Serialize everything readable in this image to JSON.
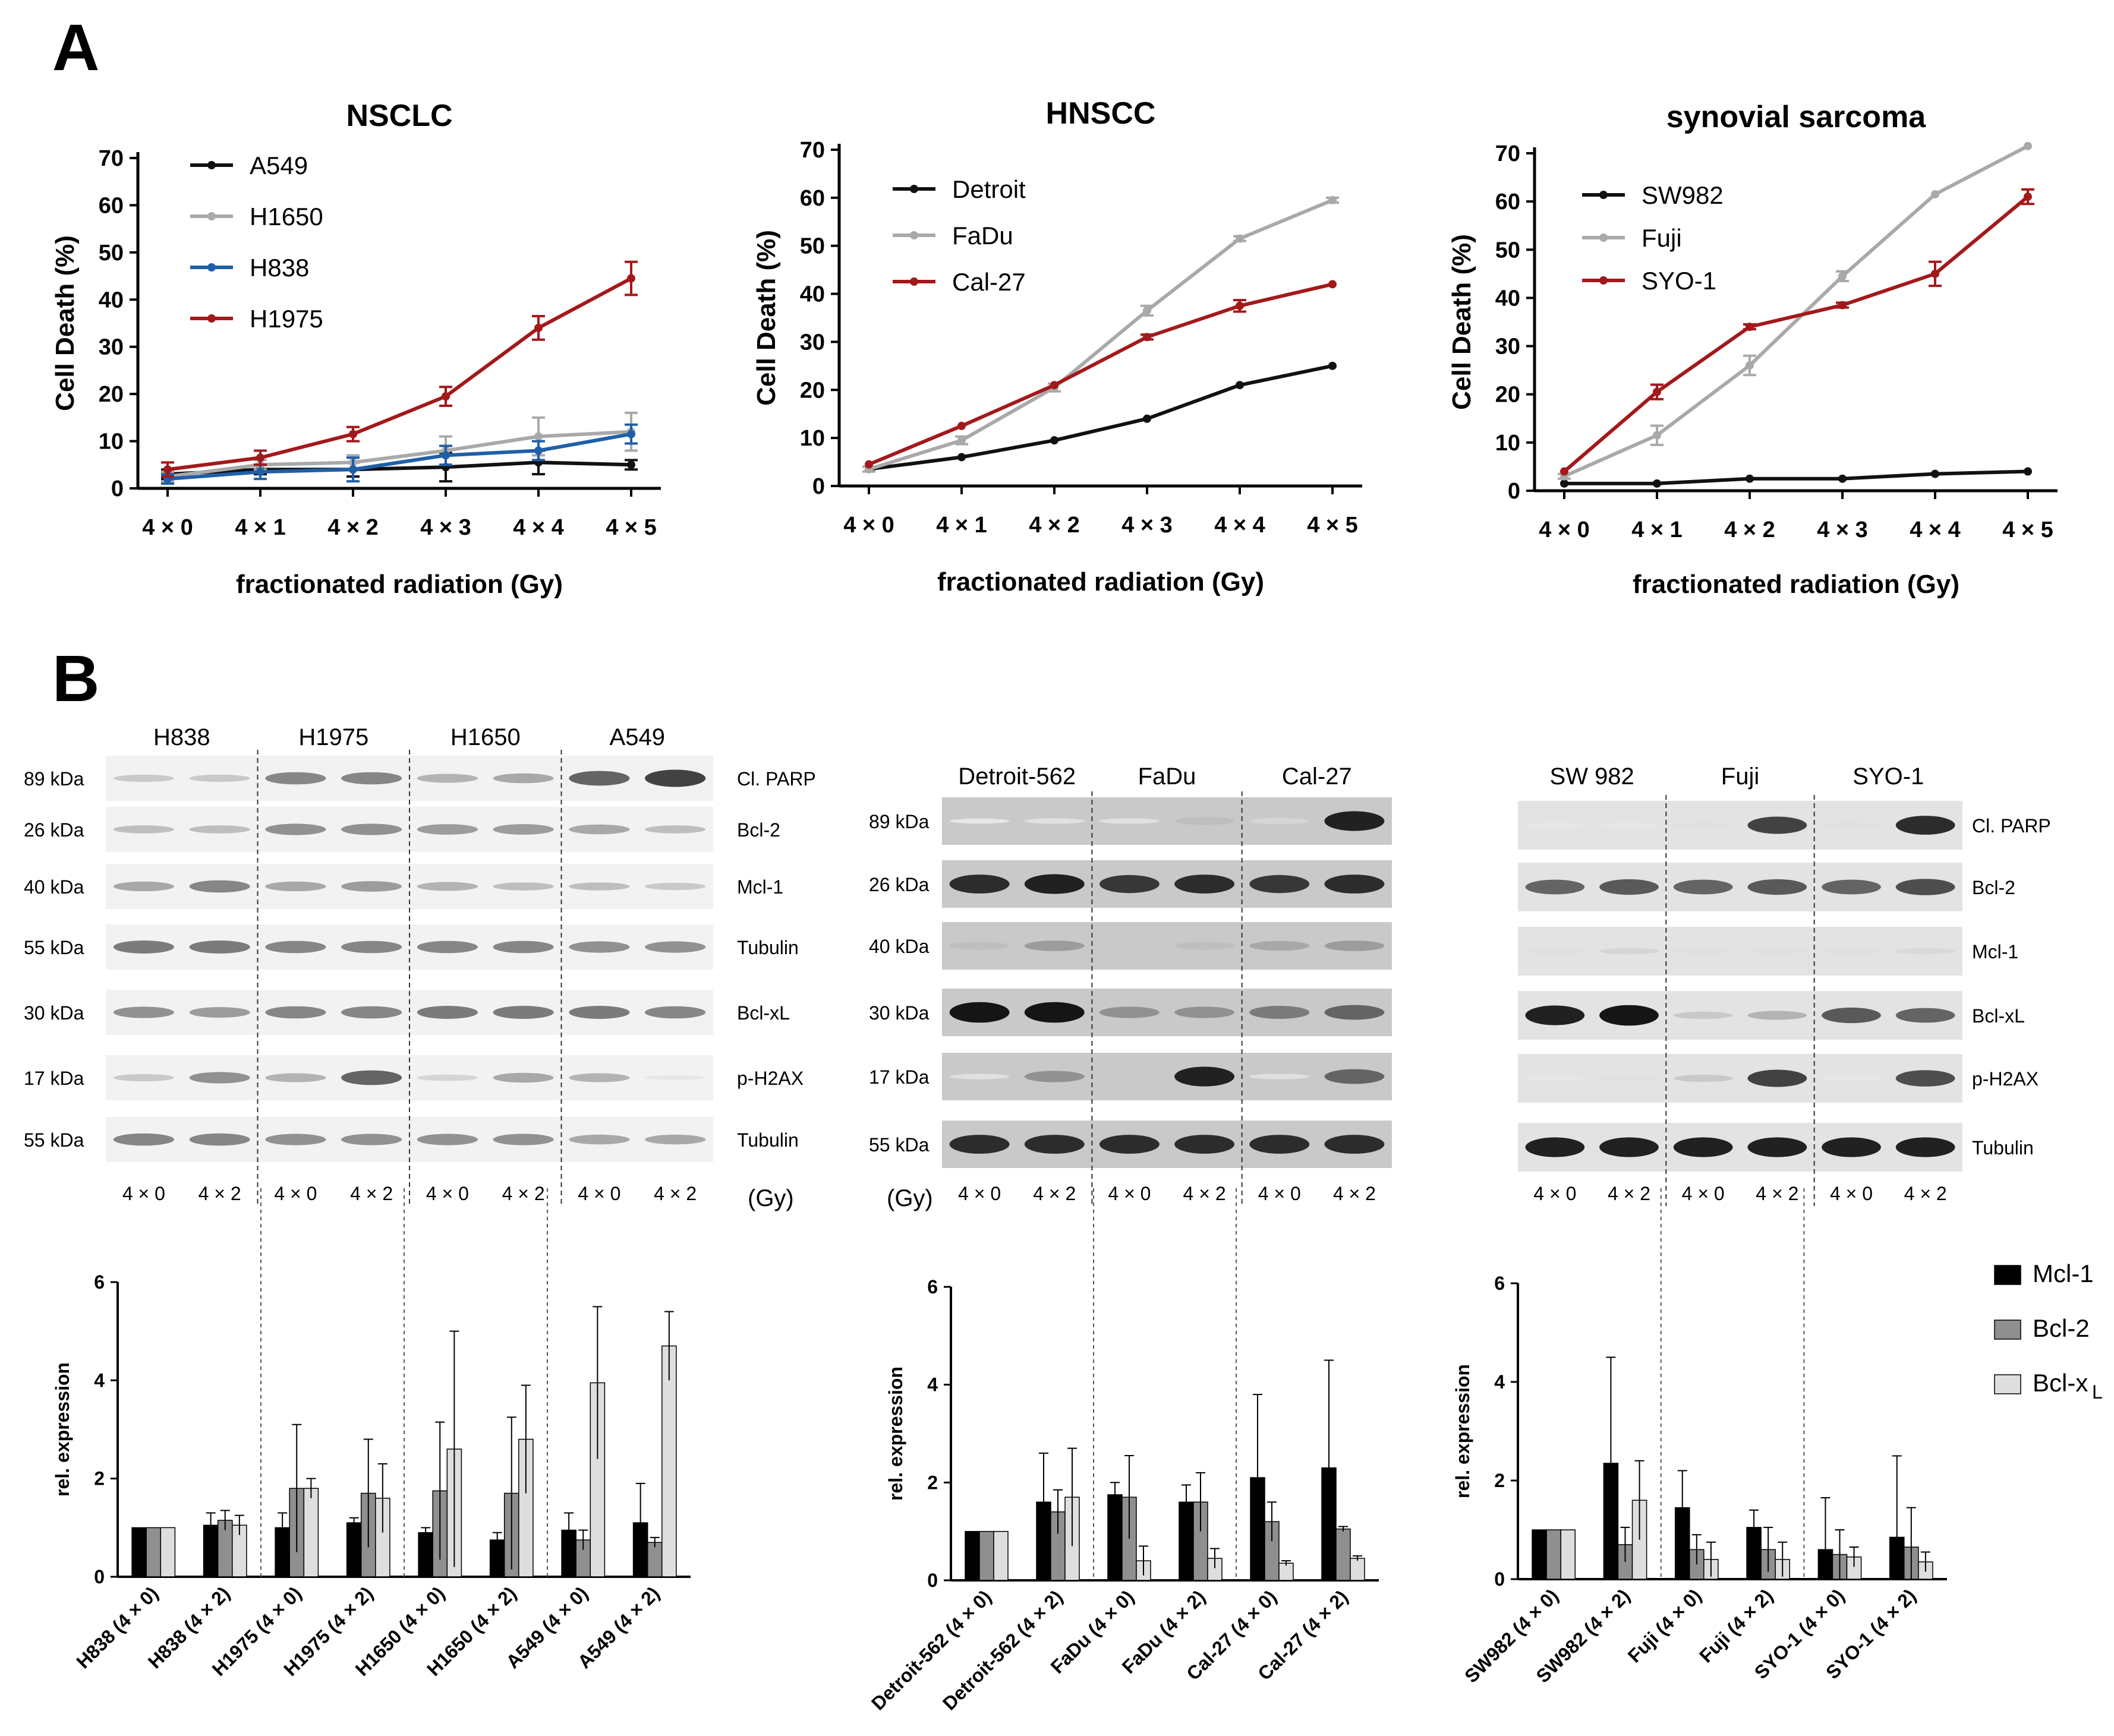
{
  "panels": {
    "a": "A",
    "b": "B"
  },
  "colors": {
    "black": "#111111",
    "gray": "#a9a9a9",
    "blue": "#1f5fa8",
    "red": "#a3191b",
    "bar_mcl1": "#000000",
    "bar_bcl2": "#8f8f8f",
    "bar_bclxl": "#dedede"
  },
  "chart_data": [
    {
      "type": "line",
      "title": "NSCLC",
      "xlabel": "fractionated radiation (Gy)",
      "ylabel": "Cell Death (%)",
      "categories": [
        "4 × 0",
        "4 × 1",
        "4 × 2",
        "4 × 3",
        "4 × 4",
        "4 × 5"
      ],
      "yticks": [
        "0",
        "10",
        "20",
        "30",
        "40",
        "50",
        "60",
        "70"
      ],
      "ylim": [
        0,
        70
      ],
      "legend_position": "top-left",
      "series": [
        {
          "name": "A549",
          "color": "#111111",
          "values": [
            3,
            4,
            4,
            4.5,
            5.5,
            5
          ],
          "errors": [
            1,
            1,
            1.5,
            3,
            2.5,
            1
          ]
        },
        {
          "name": "H1650",
          "color": "#a9a9a9",
          "values": [
            2.5,
            5,
            5.5,
            8,
            11,
            12
          ],
          "errors": [
            1,
            1,
            1.5,
            3,
            4,
            4
          ]
        },
        {
          "name": "H838",
          "color": "#1f5fa8",
          "values": [
            2,
            3.5,
            4,
            7,
            8,
            11.5
          ],
          "errors": [
            1,
            1.5,
            2.5,
            2,
            2,
            2
          ]
        },
        {
          "name": "H1975",
          "color": "#a3191b",
          "values": [
            4,
            6.5,
            11.5,
            19.5,
            34,
            44.5
          ],
          "errors": [
            1.5,
            1.5,
            1.5,
            2,
            2.5,
            3.5
          ]
        }
      ]
    },
    {
      "type": "line",
      "title": "HNSCC",
      "xlabel": "fractionated radiation (Gy)",
      "ylabel": "Cell Death (%)",
      "categories": [
        "4 × 0",
        "4 × 1",
        "4 × 2",
        "4 × 3",
        "4 × 4",
        "4 × 5"
      ],
      "yticks": [
        "0",
        "10",
        "20",
        "30",
        "40",
        "50",
        "60",
        "70"
      ],
      "ylim": [
        0,
        70
      ],
      "legend_position": "top-left",
      "series": [
        {
          "name": "Detroit",
          "color": "#111111",
          "values": [
            3.5,
            6,
            9.5,
            14,
            21,
            25
          ],
          "errors": [
            0.3,
            0.3,
            0.3,
            0.3,
            0.3,
            0.3
          ]
        },
        {
          "name": "FaDu",
          "color": "#a9a9a9",
          "values": [
            3.5,
            9.5,
            20.5,
            36.5,
            51.5,
            59.5
          ],
          "errors": [
            0.5,
            0.8,
            0.8,
            1,
            0.5,
            0.5
          ]
        },
        {
          "name": "Cal-27",
          "color": "#a3191b",
          "values": [
            4.5,
            12.5,
            21,
            31,
            37.5,
            42
          ],
          "errors": [
            0.3,
            0.3,
            0.3,
            0.5,
            1.2,
            0.3
          ]
        }
      ]
    },
    {
      "type": "line",
      "title": "synovial sarcoma",
      "xlabel": "fractionated radiation (Gy)",
      "ylabel": "Cell Death (%)",
      "categories": [
        "4 × 0",
        "4 × 1",
        "4 × 2",
        "4 × 3",
        "4 × 4",
        "4 × 5"
      ],
      "yticks": [
        "0",
        "10",
        "20",
        "30",
        "40",
        "50",
        "60",
        "70"
      ],
      "ylim": [
        0,
        70
      ],
      "legend_position": "top-left",
      "series": [
        {
          "name": "SW982",
          "color": "#111111",
          "values": [
            1.5,
            1.5,
            2.5,
            2.5,
            3.5,
            4
          ],
          "errors": [
            0.2,
            0.2,
            0.2,
            0.2,
            0.2,
            0.2
          ]
        },
        {
          "name": "Fuji",
          "color": "#a9a9a9",
          "values": [
            3,
            11.5,
            26,
            44.5,
            61.5,
            71.5
          ],
          "errors": [
            0.5,
            2,
            2,
            1,
            0.3,
            0.3
          ]
        },
        {
          "name": "SYO-1",
          "color": "#a3191b",
          "values": [
            4,
            20.5,
            34,
            38.5,
            45,
            61
          ],
          "errors": [
            0.3,
            1.5,
            0.5,
            0.5,
            2.5,
            1.5
          ]
        }
      ]
    },
    {
      "type": "bar",
      "ylabel": "rel. expression",
      "yticks": [
        "0",
        "2",
        "4",
        "6"
      ],
      "ylim": [
        0,
        6
      ],
      "categories": [
        "H838 (4 × 0)",
        "H838 (4 × 2)",
        "H1975 (4 × 0)",
        "H1975 (4 × 2)",
        "H1650 (4 × 0)",
        "H1650 (4 × 2)",
        "A549 (4 × 0)",
        "A549 (4 × 2)"
      ],
      "series": [
        {
          "name": "Mcl-1",
          "values": [
            1,
            1.05,
            1.0,
            1.1,
            0.9,
            0.75,
            0.95,
            1.1
          ],
          "errors": [
            0,
            0.25,
            0.3,
            0.1,
            0.1,
            0.15,
            0.35,
            0.8
          ]
        },
        {
          "name": "Bcl-2",
          "values": [
            1,
            1.15,
            1.8,
            1.7,
            1.75,
            1.7,
            0.75,
            0.7
          ],
          "errors": [
            0,
            0.2,
            1.3,
            1.1,
            1.4,
            1.55,
            0.2,
            0.1
          ]
        },
        {
          "name": "Bcl-xL",
          "values": [
            1,
            1.05,
            1.8,
            1.6,
            2.6,
            2.8,
            3.95,
            4.7
          ],
          "errors": [
            0,
            0.2,
            0.2,
            0.7,
            2.4,
            1.1,
            1.55,
            0.7
          ]
        }
      ]
    },
    {
      "type": "bar",
      "ylabel": "rel. expression",
      "yticks": [
        "0",
        "2",
        "4",
        "6"
      ],
      "ylim": [
        0,
        6
      ],
      "categories": [
        "Detroit-562 (4 × 0)",
        "Detroit-562 (4 × 2)",
        "FaDu (4 × 0)",
        "FaDu (4 × 2)",
        "Cal-27 (4 × 0)",
        "Cal-27 (4 × 2)"
      ],
      "series": [
        {
          "name": "Mcl-1",
          "values": [
            1,
            1.6,
            1.75,
            1.6,
            2.1,
            2.3
          ],
          "errors": [
            0,
            1.0,
            0.25,
            0.35,
            1.7,
            2.2
          ]
        },
        {
          "name": "Bcl-2",
          "values": [
            1,
            1.4,
            1.7,
            1.6,
            1.2,
            1.05
          ],
          "errors": [
            0,
            0.45,
            0.85,
            0.6,
            0.4,
            0.05
          ]
        },
        {
          "name": "Bcl-xL",
          "values": [
            1,
            1.7,
            0.4,
            0.45,
            0.35,
            0.45
          ],
          "errors": [
            0,
            1.0,
            0.3,
            0.2,
            0.05,
            0.05
          ]
        }
      ]
    },
    {
      "type": "bar",
      "ylabel": "rel. expression",
      "yticks": [
        "0",
        "2",
        "4",
        "6"
      ],
      "ylim": [
        0,
        6
      ],
      "legend": [
        "Mcl-1",
        "Bcl-2",
        "Bcl-x"
      ],
      "legend_sub": "L",
      "legend_position": "top-right",
      "categories": [
        "SW982 (4 × 0)",
        "SW982 (4 × 2)",
        "Fuji (4 × 0)",
        "Fuji (4 × 2)",
        "SYO-1 (4 × 0)",
        "SYO-1 (4 × 2)"
      ],
      "series": [
        {
          "name": "Mcl-1",
          "values": [
            1,
            2.35,
            1.45,
            1.05,
            0.6,
            0.85
          ],
          "errors": [
            0,
            2.15,
            0.75,
            0.35,
            1.05,
            1.65
          ]
        },
        {
          "name": "Bcl-2",
          "values": [
            1,
            0.7,
            0.6,
            0.6,
            0.5,
            0.65
          ],
          "errors": [
            0,
            0.35,
            0.3,
            0.45,
            0.5,
            0.8
          ]
        },
        {
          "name": "Bcl-xL",
          "values": [
            1,
            1.6,
            0.4,
            0.4,
            0.45,
            0.35
          ],
          "errors": [
            0,
            0.8,
            0.35,
            0.35,
            0.2,
            0.2
          ]
        }
      ]
    }
  ],
  "blots": [
    {
      "groups": [
        "H838",
        "H1975",
        "H1650",
        "A549"
      ],
      "kda": [
        "89 kDa",
        "26 kDa",
        "40 kDa",
        "55 kDa",
        "30 kDa",
        "17 kDa",
        "55 kDa"
      ],
      "proteins": [
        "Cl. PARP",
        "Bcl-2",
        "Mcl-1",
        "Tubulin",
        "Bcl-xL",
        "p-H2AX",
        "Tubulin"
      ],
      "lanes": [
        "4 × 0",
        "4 × 2",
        "4 × 0",
        "4 × 2",
        "4 × 0",
        "4 × 2",
        "4 × 0",
        "4 × 2"
      ],
      "unit": "(Gy)",
      "intensity": [
        [
          0.15,
          0.15,
          0.45,
          0.45,
          0.25,
          0.3,
          0.6,
          0.75
        ],
        [
          0.2,
          0.2,
          0.4,
          0.4,
          0.35,
          0.35,
          0.3,
          0.2
        ],
        [
          0.3,
          0.45,
          0.3,
          0.35,
          0.25,
          0.2,
          0.2,
          0.15
        ],
        [
          0.5,
          0.5,
          0.45,
          0.45,
          0.45,
          0.45,
          0.4,
          0.4
        ],
        [
          0.4,
          0.35,
          0.45,
          0.45,
          0.5,
          0.5,
          0.5,
          0.45
        ],
        [
          0.15,
          0.4,
          0.25,
          0.6,
          0.1,
          0.3,
          0.25,
          0.02
        ],
        [
          0.45,
          0.45,
          0.4,
          0.4,
          0.4,
          0.4,
          0.3,
          0.3
        ]
      ]
    },
    {
      "groups": [
        "Detroit-562",
        "FaDu",
        "Cal-27"
      ],
      "kda": [
        "89 kDa",
        "26 kDa",
        "40 kDa",
        "30 kDa",
        "17 kDa",
        "55 kDa"
      ],
      "proteins": [],
      "lanes": [
        "4 × 0",
        "4 × 2",
        "4 × 0",
        "4 × 2",
        "4 × 0",
        "4 × 2"
      ],
      "unit": "(Gy)",
      "intensity": [
        [
          0.02,
          0.05,
          0.05,
          0.2,
          0.1,
          0.9
        ],
        [
          0.85,
          0.9,
          0.8,
          0.85,
          0.8,
          0.85
        ],
        [
          0.2,
          0.35,
          0.15,
          0.2,
          0.3,
          0.35
        ],
        [
          0.95,
          0.95,
          0.4,
          0.4,
          0.5,
          0.6
        ],
        [
          0.05,
          0.4,
          0.15,
          0.9,
          0.05,
          0.6
        ],
        [
          0.85,
          0.85,
          0.85,
          0.85,
          0.85,
          0.85
        ]
      ]
    },
    {
      "groups": [
        "SW 982",
        "Fuji",
        "SYO-1"
      ],
      "kda": [],
      "proteins": [
        "Cl. PARP",
        "Bcl-2",
        "Mcl-1",
        "Bcl-xL",
        "p-H2AX",
        "Tubulin"
      ],
      "lanes": [
        "4 × 0",
        "4 × 2",
        "4 × 0",
        "4 × 2",
        "4 × 0",
        "4 × 2"
      ],
      "unit": "",
      "intensity": [
        [
          0.02,
          0.02,
          0.05,
          0.75,
          0.05,
          0.85
        ],
        [
          0.6,
          0.65,
          0.6,
          0.65,
          0.6,
          0.7
        ],
        [
          0.05,
          0.1,
          0.05,
          0.05,
          0.05,
          0.08
        ],
        [
          0.9,
          0.95,
          0.15,
          0.25,
          0.65,
          0.6
        ],
        [
          0.02,
          0.05,
          0.15,
          0.75,
          0.02,
          0.7
        ],
        [
          0.9,
          0.9,
          0.9,
          0.9,
          0.9,
          0.9
        ]
      ]
    }
  ]
}
